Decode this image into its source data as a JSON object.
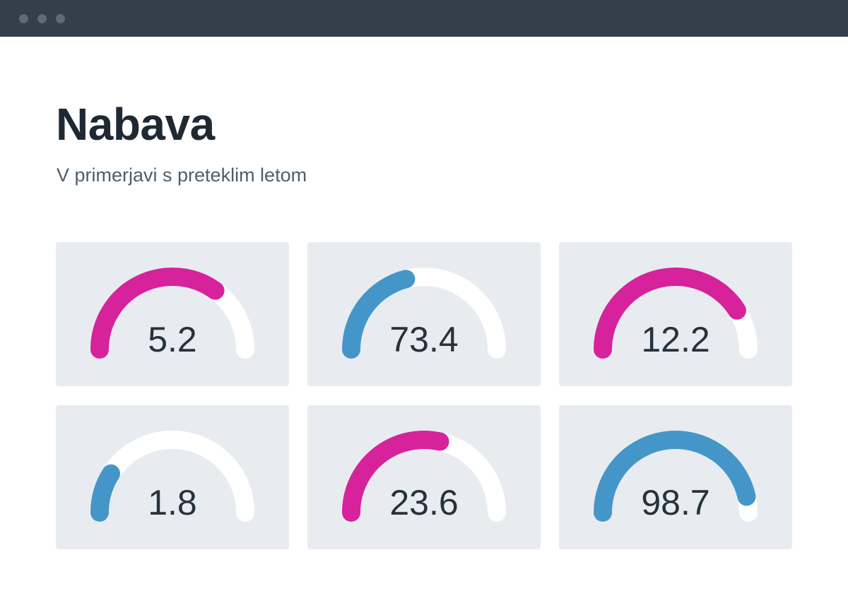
{
  "window": {
    "controls": [
      "close",
      "minimize",
      "maximize"
    ]
  },
  "header": {
    "title": "Nabava",
    "subtitle": "V primerjavi s preteklim letom"
  },
  "colors": {
    "pink": "#d6239b",
    "blue": "#4596c8",
    "track": "#ffffff",
    "card_bg": "#e8ecf0"
  },
  "gauges": [
    {
      "label": "5.2",
      "fraction": 0.7,
      "color": "#d6239b"
    },
    {
      "label": "73.4",
      "fraction": 0.42,
      "color": "#4596c8"
    },
    {
      "label": "12.2",
      "fraction": 0.82,
      "color": "#d6239b"
    },
    {
      "label": "1.8",
      "fraction": 0.18,
      "color": "#4596c8"
    },
    {
      "label": "23.6",
      "fraction": 0.57,
      "color": "#d6239b"
    },
    {
      "label": "98.7",
      "fraction": 0.93,
      "color": "#4596c8"
    }
  ]
}
